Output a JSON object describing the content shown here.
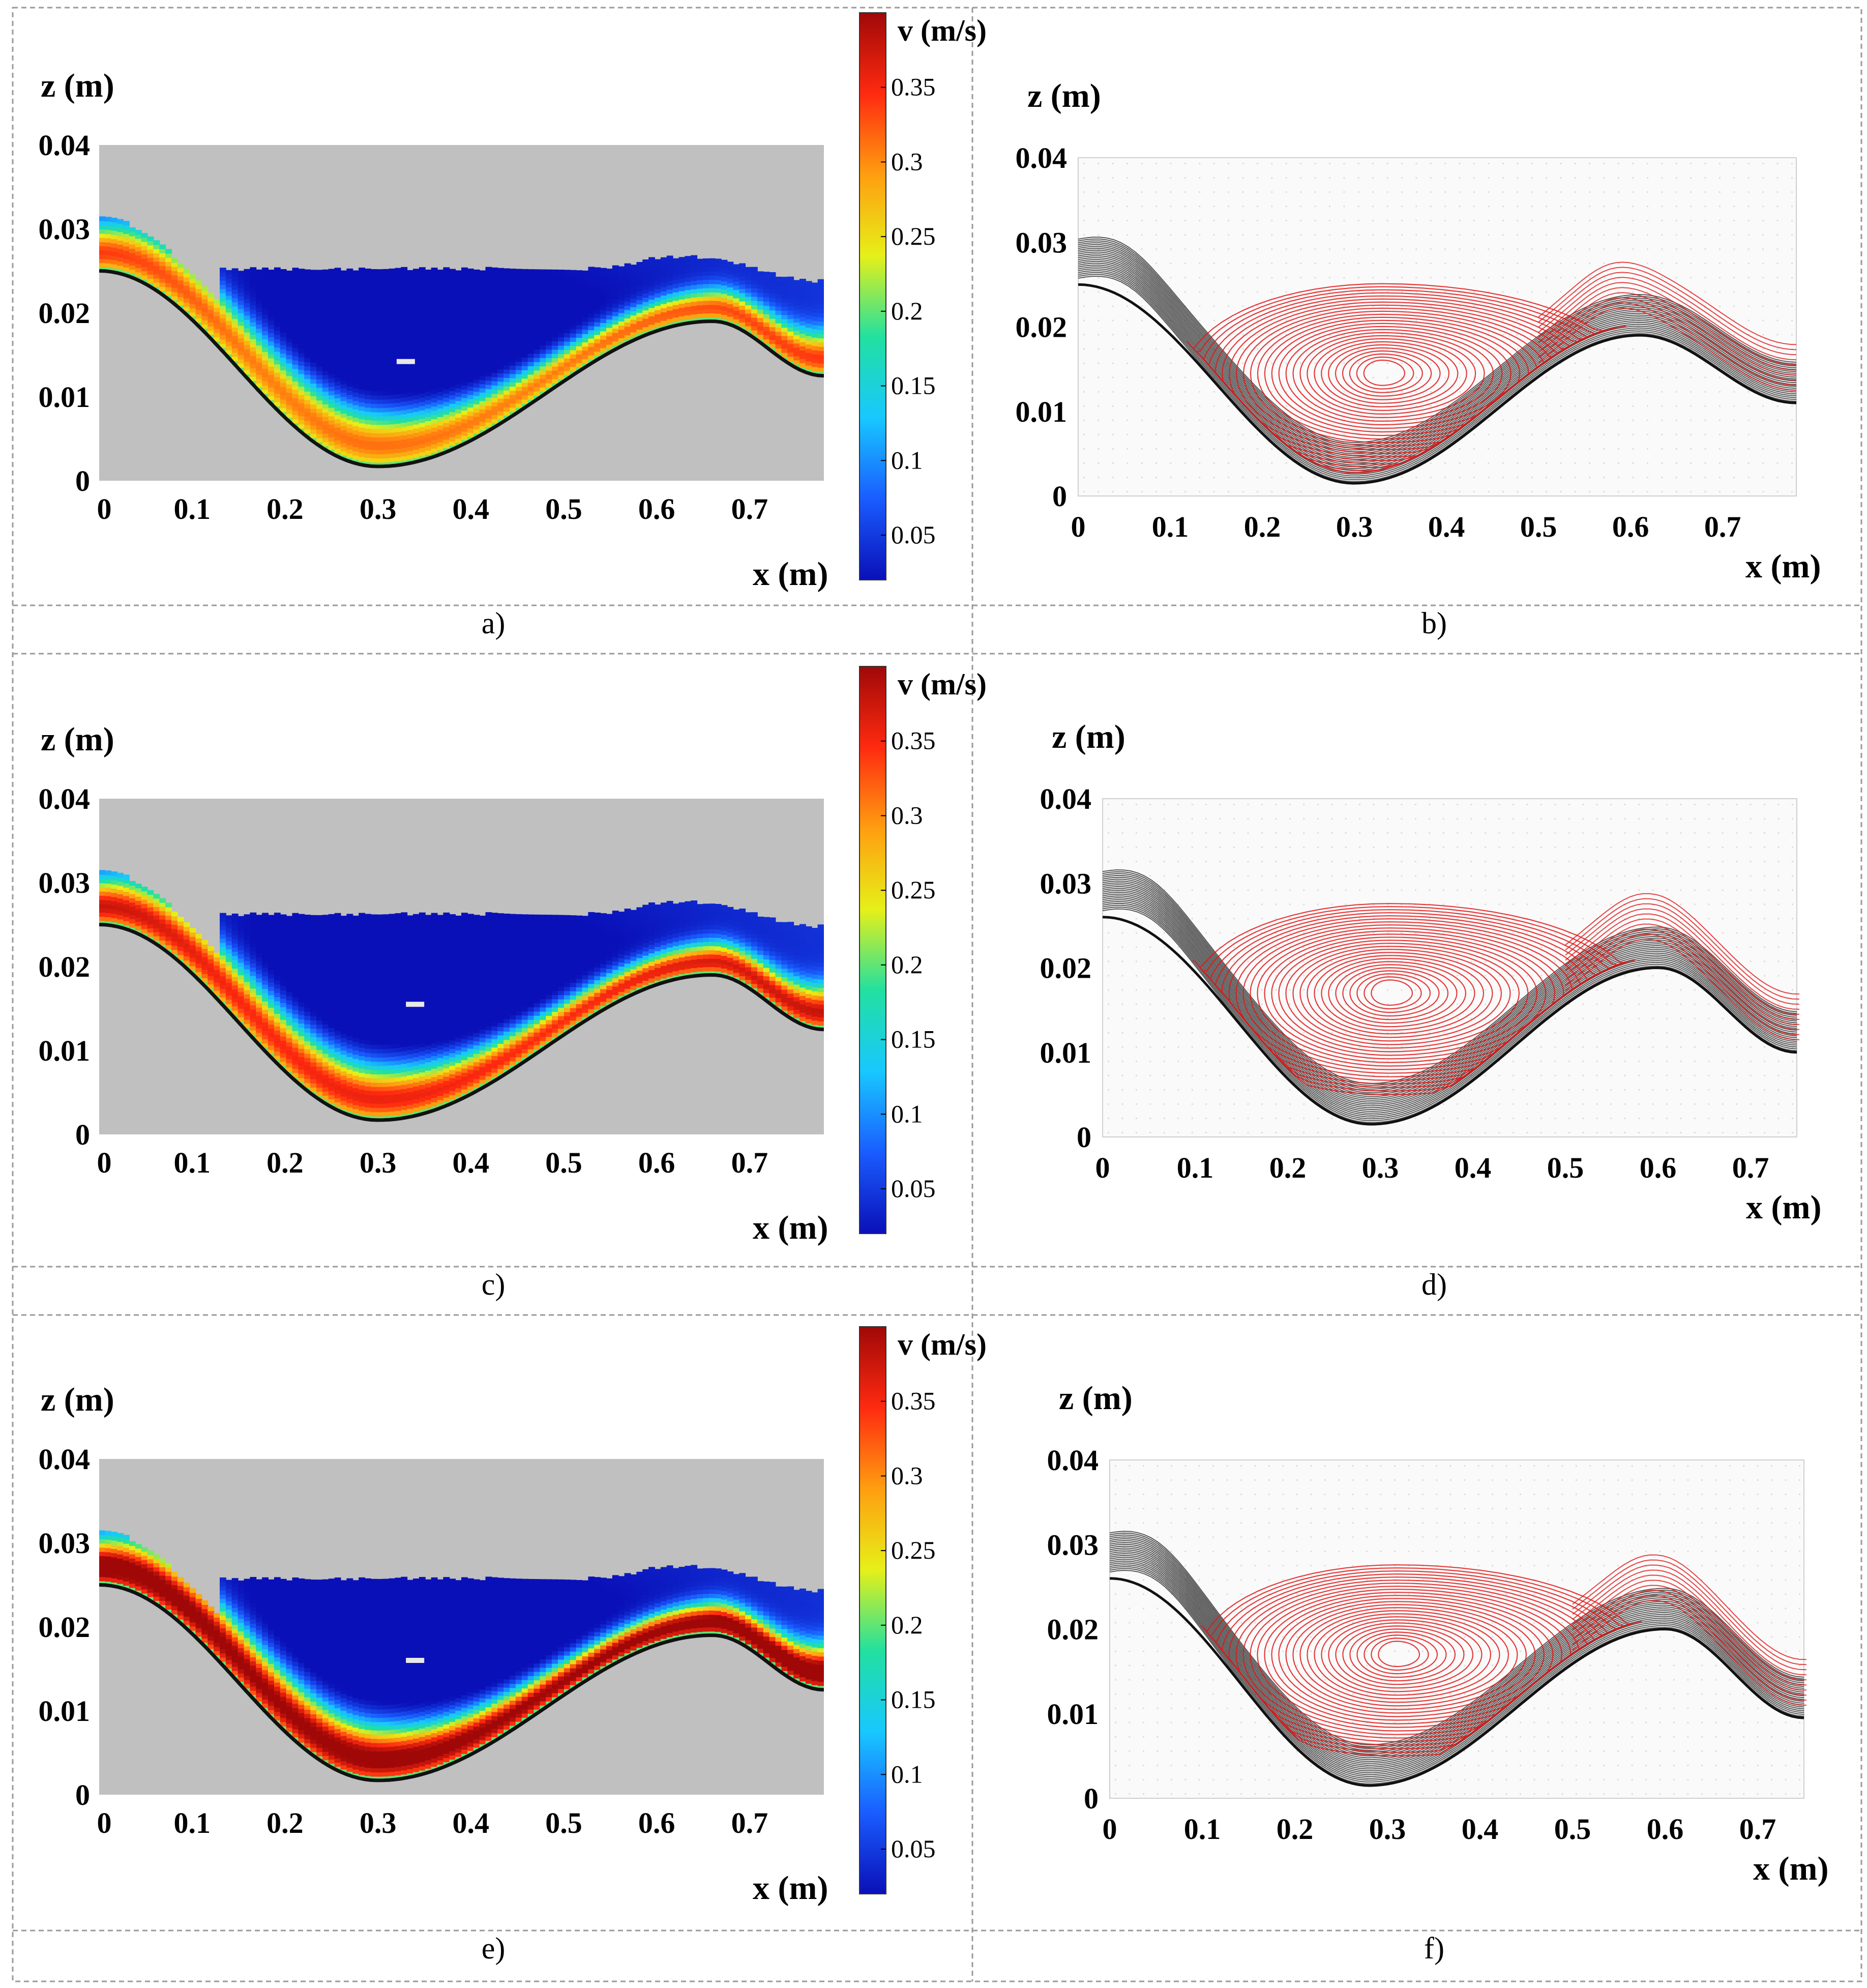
{
  "colors": {
    "background": "#ffffff",
    "mask_gray": "#c0c0c0",
    "wall": "#111111",
    "streamline_red": "#e01818",
    "streamline_black": "#222222",
    "panel_border": "#9a9a9a",
    "colormap": [
      "#0a10b8",
      "#1a5cff",
      "#18c8ff",
      "#22e0a0",
      "#e6f018",
      "#ff9e10",
      "#ff2a10",
      "#a00808"
    ]
  },
  "labels": {
    "z_axis": "z (m)",
    "x_axis": "x (m)",
    "colorbar_title": "v (m/s)"
  },
  "captions": [
    "a)",
    "b)",
    "c)",
    "d)",
    "e)",
    "f)"
  ],
  "chart_data": [
    {
      "id": "a",
      "type": "heatmap",
      "title": "",
      "xlabel": "x (m)",
      "ylabel": "z (m)",
      "xlim": [
        0,
        0.78
      ],
      "ylim": [
        0,
        0.04
      ],
      "x_ticks": [
        "0",
        "0.1",
        "0.2",
        "0.3",
        "0.4",
        "0.5",
        "0.6",
        "0.7"
      ],
      "y_ticks": [
        "0",
        "0.01",
        "0.02",
        "0.03",
        "0.04"
      ],
      "wall_profile": {
        "x": [
          0,
          0.3,
          0.66,
          0.78
        ],
        "z": [
          0.025,
          0.0017,
          0.019,
          0.0125
        ]
      },
      "free_surface_z": 0.025,
      "jet_peak_velocity": 0.3,
      "recirculation_center": [
        0.33,
        0.0142
      ],
      "colorbar": {
        "label": "v (m/s)",
        "range": [
          0.02,
          0.4
        ],
        "ticks": [
          "0.05",
          "0.1",
          "0.15",
          "0.2",
          "0.25",
          "0.3",
          "0.35"
        ]
      }
    },
    {
      "id": "b",
      "type": "line",
      "title": "",
      "xlabel": "x (m)",
      "ylabel": "z (m)",
      "xlim": [
        0,
        0.78
      ],
      "ylim": [
        0,
        0.04
      ],
      "x_ticks": [
        "0",
        "0.1",
        "0.2",
        "0.3",
        "0.4",
        "0.5",
        "0.6",
        "0.7"
      ],
      "y_ticks": [
        "0",
        "0.01",
        "0.02",
        "0.03",
        "0.04"
      ],
      "series": [
        {
          "name": "streamlines (red, vortex)",
          "values": []
        },
        {
          "name": "streamlines (black, wall jet)",
          "values": []
        }
      ],
      "wall_profile": {
        "x": [
          0,
          0.3,
          0.61,
          0.78
        ],
        "z": [
          0.025,
          0.0015,
          0.019,
          0.011
        ]
      },
      "vortex_center": [
        0.33,
        0.0145
      ]
    },
    {
      "id": "c",
      "type": "heatmap",
      "title": "",
      "xlabel": "x (m)",
      "ylabel": "z (m)",
      "xlim": [
        0,
        0.78
      ],
      "ylim": [
        0,
        0.04
      ],
      "x_ticks": [
        "0",
        "0.1",
        "0.2",
        "0.3",
        "0.4",
        "0.5",
        "0.6",
        "0.7"
      ],
      "y_ticks": [
        "0",
        "0.01",
        "0.02",
        "0.03",
        "0.04"
      ],
      "wall_profile": {
        "x": [
          0,
          0.3,
          0.66,
          0.78
        ],
        "z": [
          0.025,
          0.0017,
          0.019,
          0.0125
        ]
      },
      "free_surface_z": 0.026,
      "jet_peak_velocity": 0.34,
      "recirculation_center": [
        0.34,
        0.0155
      ],
      "colorbar": {
        "label": "v (m/s)",
        "range": [
          0.02,
          0.4
        ],
        "ticks": [
          "0.05",
          "0.1",
          "0.15",
          "0.2",
          "0.25",
          "0.3",
          "0.35"
        ]
      }
    },
    {
      "id": "d",
      "type": "line",
      "title": "",
      "xlabel": "x (m)",
      "ylabel": "z (m)",
      "xlim": [
        0,
        0.75
      ],
      "ylim": [
        0,
        0.04
      ],
      "x_ticks": [
        "0",
        "0.1",
        "0.2",
        "0.3",
        "0.4",
        "0.5",
        "0.6",
        "0.7"
      ],
      "y_ticks": [
        "0",
        "0.01",
        "0.02",
        "0.03",
        "0.04"
      ],
      "series": [
        {
          "name": "streamlines (red, vortex)",
          "values": []
        },
        {
          "name": "streamlines (black, wall jet)",
          "values": []
        }
      ],
      "wall_profile": {
        "x": [
          0,
          0.29,
          0.6,
          0.75
        ],
        "z": [
          0.026,
          0.0015,
          0.02,
          0.01
        ]
      },
      "vortex_center": [
        0.31,
        0.017
      ]
    },
    {
      "id": "e",
      "type": "heatmap",
      "title": "",
      "xlabel": "x (m)",
      "ylabel": "z (m)",
      "xlim": [
        0,
        0.78
      ],
      "ylim": [
        0,
        0.04
      ],
      "x_ticks": [
        "0",
        "0.1",
        "0.2",
        "0.3",
        "0.4",
        "0.5",
        "0.6",
        "0.7"
      ],
      "y_ticks": [
        "0",
        "0.01",
        "0.02",
        "0.03",
        "0.04"
      ],
      "wall_profile": {
        "x": [
          0,
          0.3,
          0.66,
          0.78
        ],
        "z": [
          0.025,
          0.0017,
          0.019,
          0.0125
        ]
      },
      "free_surface_z": 0.0255,
      "jet_peak_velocity": 0.4,
      "recirculation_center": [
        0.34,
        0.016
      ],
      "colorbar": {
        "label": "v (m/s)",
        "range": [
          0.02,
          0.4
        ],
        "ticks": [
          "0.05",
          "0.1",
          "0.15",
          "0.2",
          "0.25",
          "0.3",
          "0.35"
        ]
      }
    },
    {
      "id": "f",
      "type": "line",
      "title": "",
      "xlabel": "x (m)",
      "ylabel": "z (m)",
      "xlim": [
        0,
        0.75
      ],
      "ylim": [
        0,
        0.04
      ],
      "x_ticks": [
        "0",
        "0.1",
        "0.2",
        "0.3",
        "0.4",
        "0.5",
        "0.6",
        "0.7"
      ],
      "y_ticks": [
        "0",
        "0.01",
        "0.02",
        "0.03",
        "0.04"
      ],
      "series": [
        {
          "name": "streamlines (red, vortex)",
          "values": []
        },
        {
          "name": "streamlines (black, wall jet)",
          "values": []
        }
      ],
      "wall_profile": {
        "x": [
          0,
          0.28,
          0.6,
          0.75
        ],
        "z": [
          0.026,
          0.0015,
          0.02,
          0.0095
        ]
      },
      "vortex_center": [
        0.31,
        0.017
      ]
    }
  ]
}
